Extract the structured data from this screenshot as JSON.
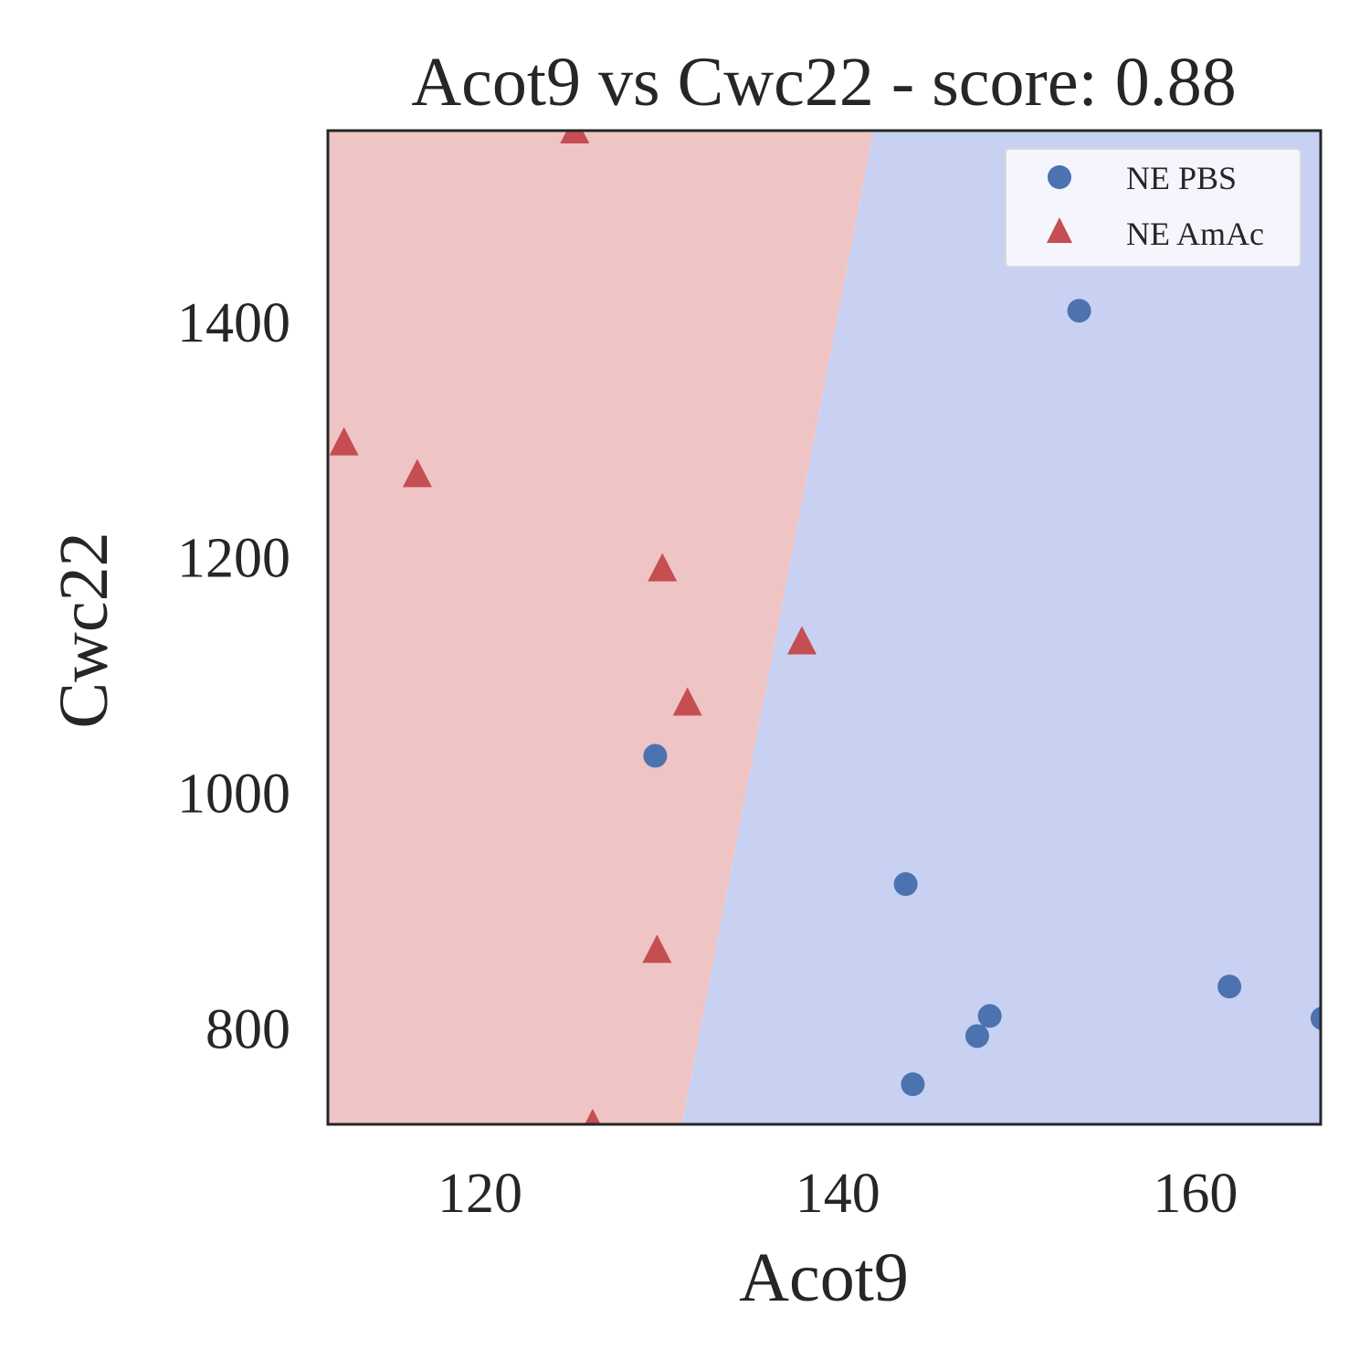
{
  "chart_data": {
    "type": "scatter",
    "title": "Acot9 vs Cwc22 - score: 0.88",
    "xlabel": "Acot9",
    "ylabel": "Cwc22",
    "xlim": [
      111.5,
      167.0
    ],
    "ylim": [
      718,
      1562
    ],
    "xticks": [
      120,
      140,
      160
    ],
    "yticks": [
      800,
      1000,
      1200,
      1400
    ],
    "grid": false,
    "legend_position": "top-right",
    "decision_regions": {
      "boundary": [
        [
          131.3,
          718
        ],
        [
          142.0,
          1562
        ]
      ],
      "left_region_color": "#efc4c4",
      "right_region_color": "#c8d1f2"
    },
    "series": [
      {
        "name": "NE PBS",
        "marker": "circle",
        "color": "#4c72b0",
        "points": [
          [
            153.5,
            1409
          ],
          [
            129.8,
            1031
          ],
          [
            143.8,
            922
          ],
          [
            161.9,
            835
          ],
          [
            167.1,
            808
          ],
          [
            148.5,
            810
          ],
          [
            147.8,
            793
          ],
          [
            144.2,
            752
          ]
        ]
      },
      {
        "name": "NE AmAc",
        "marker": "triangle",
        "color": "#c44e52",
        "points": [
          [
            125.3,
            1562
          ],
          [
            112.4,
            1297
          ],
          [
            116.5,
            1270
          ],
          [
            130.2,
            1190
          ],
          [
            138.0,
            1128
          ],
          [
            131.6,
            1076
          ],
          [
            129.9,
            866
          ],
          [
            126.3,
            718
          ]
        ]
      }
    ]
  }
}
